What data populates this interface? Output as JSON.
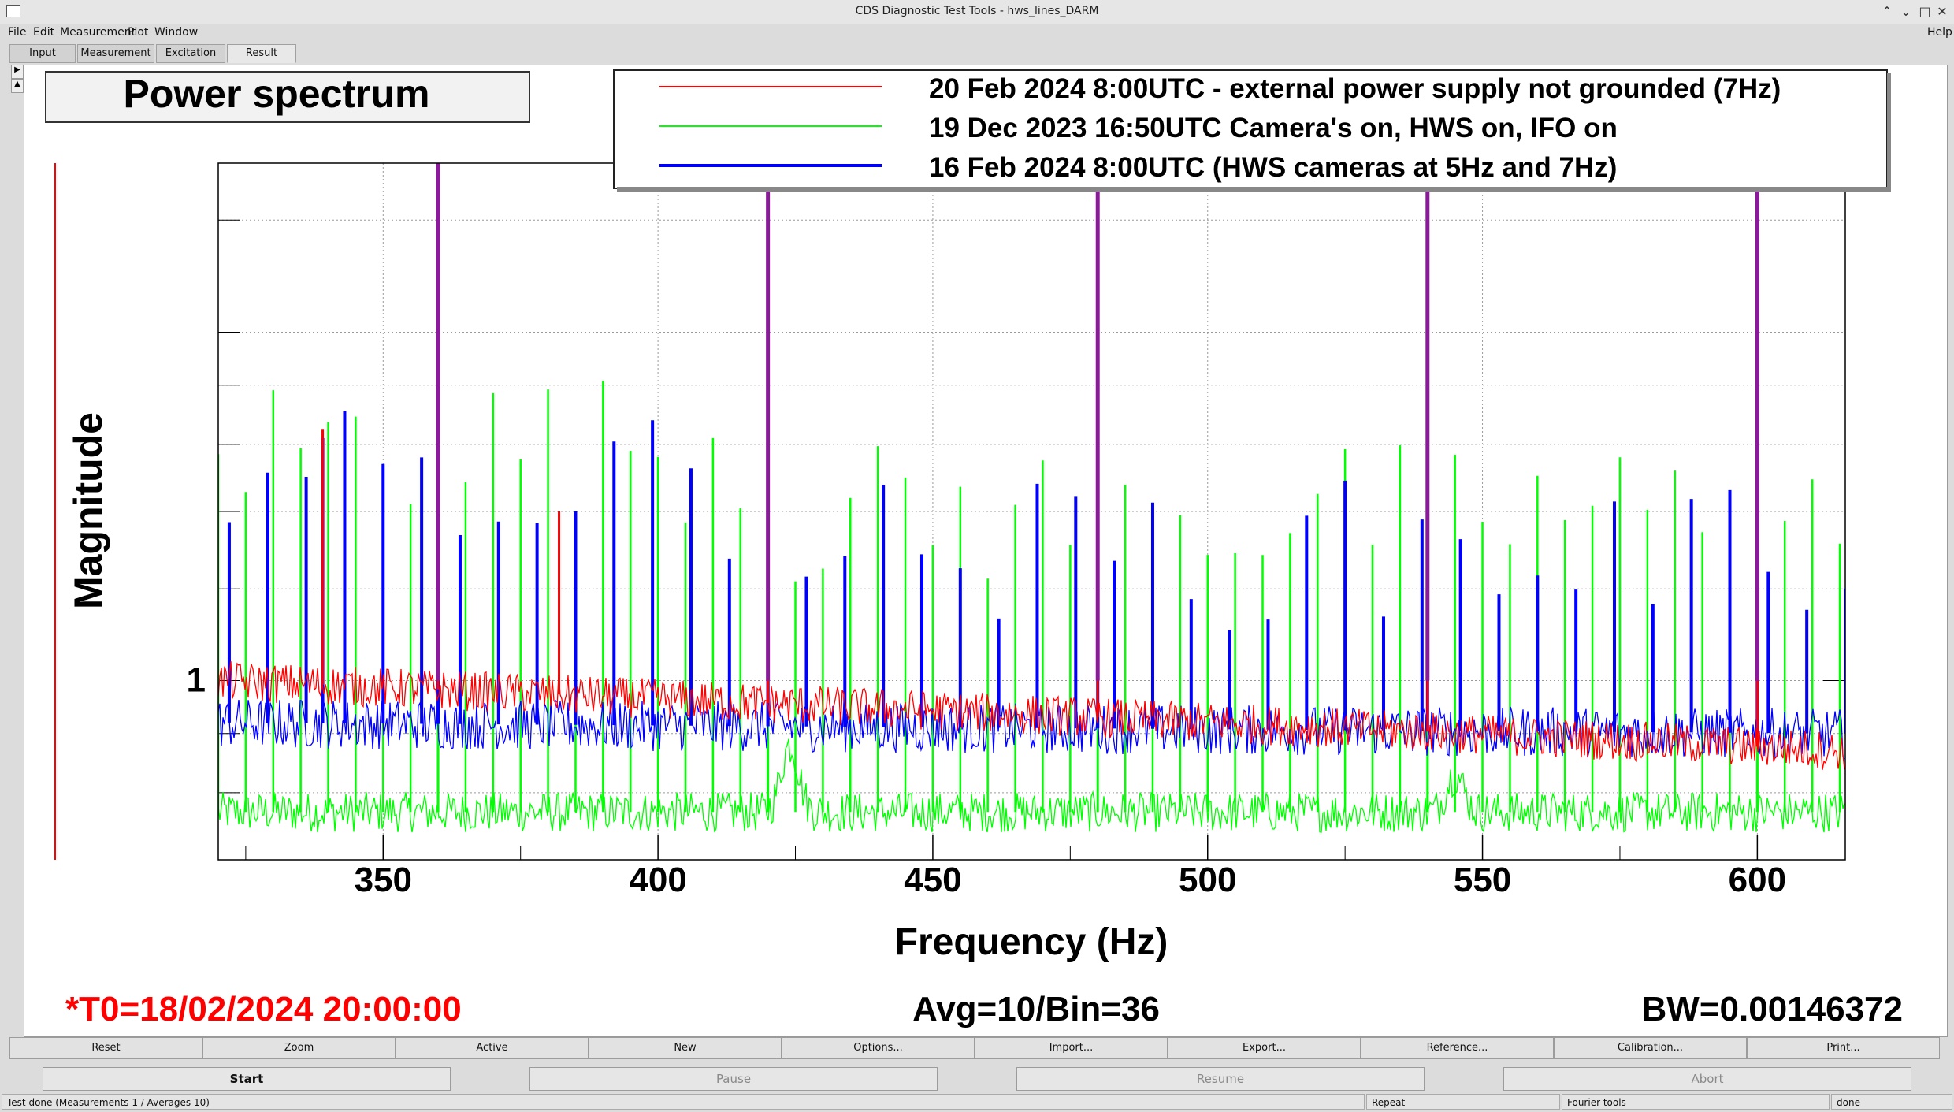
{
  "window": {
    "title": "CDS Diagnostic Test Tools - hws_lines_DARM",
    "controls": [
      "minimize-icon",
      "maximize-icon",
      "close-icon"
    ]
  },
  "menu": [
    "File",
    "Edit",
    "Measurement",
    "Plot",
    "Window"
  ],
  "help": "Help",
  "tabs": [
    "Input",
    "Measurement",
    "Excitation",
    "Result"
  ],
  "chart_data": {
    "type": "line",
    "title": "Power spectrum",
    "xlabel": "Frequency (Hz)",
    "ylabel": "Magnitude",
    "xlim": [
      320,
      616
    ],
    "ylim": [
      0.7,
      2.8
    ],
    "yscale": "log",
    "xticks": [
      350,
      400,
      450,
      500,
      550,
      600
    ],
    "ytick_labels": [
      "1"
    ],
    "grid": true,
    "legend_position": "top-right",
    "series": [
      {
        "name": "20 Feb 2024  8:00UTC  - external power supply not grounded (7Hz)",
        "color": "#ff0000",
        "baseline_start": 1.0,
        "baseline_end": 0.87,
        "peaks": [
          [
            360,
            2.8
          ],
          [
            420,
            2.8
          ],
          [
            480,
            2.8
          ],
          [
            540,
            2.8
          ],
          [
            600,
            2.8
          ],
          [
            339,
            1.65
          ],
          [
            382,
            1.4
          ]
        ]
      },
      {
        "name": "19 Dec 2023 16:50UTC Camera's on, HWS on, IFO on",
        "color": "#00ff00",
        "baseline_start": 0.77,
        "baseline_end": 0.77,
        "comb_spacing_hz": 5,
        "comb_height": 1.4,
        "bumps": [
          [
            424,
            0.88
          ],
          [
            545,
            0.83
          ]
        ],
        "peaks": [
          [
            360,
            2.8
          ],
          [
            420,
            2.8
          ],
          [
            480,
            2.8
          ],
          [
            540,
            2.8
          ],
          [
            600,
            2.8
          ]
        ]
      },
      {
        "name": "16 Feb 2024 8:00UTC (HWS cameras at 5Hz and 7Hz)",
        "color": "#0000ff",
        "baseline_start": 0.92,
        "baseline_end": 0.9,
        "comb_spacing_hz": 7,
        "comb_height": 1.3,
        "peaks": [
          [
            360,
            2.8
          ],
          [
            420,
            2.8
          ],
          [
            480,
            2.8
          ],
          [
            540,
            2.8
          ],
          [
            600,
            2.8
          ],
          [
            339,
            1.62
          ]
        ]
      }
    ]
  },
  "info": {
    "t0": "*T0=18/02/2024 20:00:00",
    "avg": "Avg=10/Bin=36",
    "bw": "BW=0.00146372"
  },
  "buttons_row1": [
    "Reset",
    "Zoom",
    "Active",
    "New",
    "Options...",
    "Import...",
    "Export...",
    "Reference...",
    "Calibration...",
    "Print..."
  ],
  "buttons_row2": {
    "start": "Start",
    "pause": "Pause",
    "resume": "Resume",
    "abort": "Abort"
  },
  "status": {
    "message": "Test done (Measurements 1 / Averages 10)",
    "repeat": "Repeat",
    "tools": "Fourier tools",
    "state": "done"
  }
}
